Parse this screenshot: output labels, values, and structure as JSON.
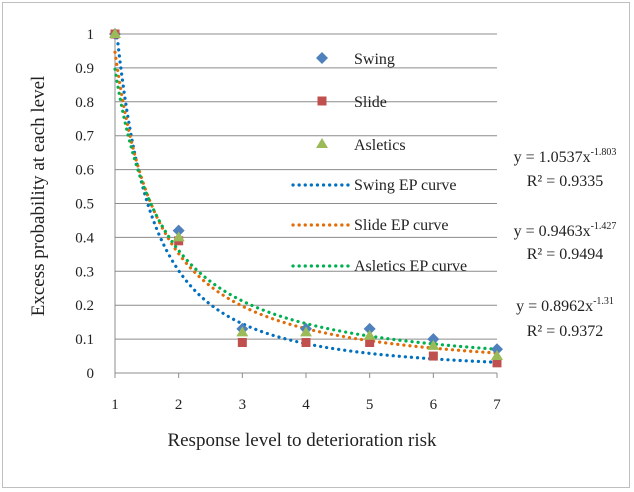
{
  "chart_data": {
    "type": "scatter",
    "title": "",
    "xlabel": "Response level to deterioration risk",
    "ylabel": "Excess probability at each level",
    "xlim": [
      1,
      7
    ],
    "ylim": [
      0,
      1
    ],
    "x_ticks": [
      "1",
      "2",
      "3",
      "4",
      "5",
      "6",
      "7"
    ],
    "y_ticks": [
      "0",
      "0.1",
      "0.2",
      "0.3",
      "0.4",
      "0.5",
      "0.6",
      "0.7",
      "0.8",
      "0.9",
      "1"
    ],
    "grid": "horizontal",
    "x": [
      1,
      2,
      3,
      4,
      5,
      6,
      7
    ],
    "series": [
      {
        "name": "Swing",
        "marker": "diamond",
        "color": "#4f81bd",
        "values": [
          1.0,
          0.42,
          0.13,
          0.13,
          0.13,
          0.1,
          0.07
        ]
      },
      {
        "name": "Slide",
        "marker": "square",
        "color": "#c0504d",
        "values": [
          1.0,
          0.39,
          0.09,
          0.09,
          0.09,
          0.05,
          0.03
        ]
      },
      {
        "name": "Asletics",
        "marker": "triangle",
        "color": "#9bbb59",
        "values": [
          1.0,
          0.4,
          0.12,
          0.12,
          0.11,
          0.08,
          0.05
        ]
      }
    ],
    "trendlines": [
      {
        "name": "Swing EP curve",
        "color": "#0070c0",
        "a": 1.0537,
        "b": -1.803,
        "equation_base": "y = 1.0537x",
        "exponent": "-1.803",
        "r2_label": "R² = 0.9335"
      },
      {
        "name": "Slide EP curve",
        "color": "#e36c09",
        "a": 0.9463,
        "b": -1.427,
        "equation_base": "y = 0.9463x",
        "exponent": "-1.427",
        "r2_label": "R² = 0.9494"
      },
      {
        "name": "Asletics EP curve",
        "color": "#00b050",
        "a": 0.8962,
        "b": -1.31,
        "equation_base": "y = 0.8962x",
        "exponent": "-1.31",
        "r2_label": "R² = 0.9372"
      }
    ],
    "legend": "inside-top-right"
  }
}
